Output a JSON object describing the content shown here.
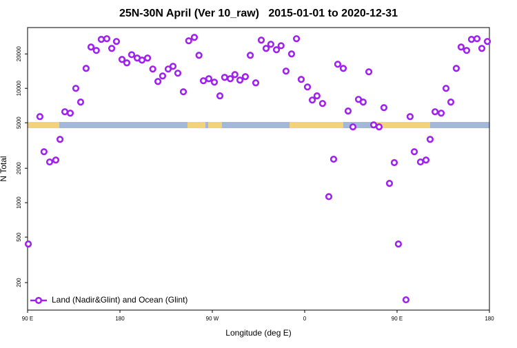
{
  "chart_data": {
    "type": "scatter",
    "title": "25N-30N April (Ver 10_raw)   2015-01-01 to 2020-12-31",
    "x_label": "Longitude (deg E)",
    "y_label": "N Total",
    "log_y": true,
    "legend": "lower left",
    "xlim": [
      90,
      540
    ],
    "xticks": [
      {
        "value": 90,
        "label": "90 E"
      },
      {
        "value": 180,
        "label": "180"
      },
      {
        "value": 270,
        "label": "90 W"
      },
      {
        "value": 360,
        "label": "0"
      },
      {
        "value": 450,
        "label": "90 E"
      },
      {
        "value": 540,
        "label": "180"
      }
    ],
    "ylim": [
      115,
      34000
    ],
    "yticks": [
      200,
      500,
      1000,
      2000,
      5000,
      10000,
      20000
    ],
    "series": [
      {
        "name": "Land (Nadir&Glint) and Ocean (Glint)",
        "color": "#a020f0",
        "x": [
          90.7,
          102,
          106,
          111.5,
          117.5,
          121.6,
          126.3,
          131.6,
          137,
          141.7,
          147,
          151.8,
          157,
          161.8,
          167.2,
          172,
          176.6,
          182,
          186.7,
          191.4,
          196.8,
          201.5,
          206.9,
          212,
          217,
          221.6,
          227,
          231.7,
          236.4,
          241.8,
          247,
          252.5,
          257,
          261.3,
          266.6,
          272,
          277.4,
          282,
          287.5,
          292,
          296.9,
          302.2,
          307,
          312.3,
          317.7,
          322.4,
          327,
          332.5,
          337,
          341.8,
          347.2,
          352,
          356.6,
          362.7,
          367.4,
          372,
          377.4,
          383.5,
          388.2,
          392.2,
          397.6,
          402.3,
          407,
          412.4,
          417,
          422.5,
          427.2,
          432.5,
          437.2,
          442.6,
          447.3,
          451.3,
          458.7,
          462.7,
          466.8,
          472.8,
          478.2,
          482.2,
          487,
          493,
          497.7,
          502.4,
          507.7,
          512.4,
          517.8,
          522.5,
          527.9,
          532.6,
          538
        ],
        "values": [
          435,
          5660,
          2790,
          2270,
          2360,
          3580,
          6240,
          6070,
          10000,
          7580,
          14950,
          22980,
          21450,
          26800,
          27160,
          22350,
          25700,
          17900,
          16700,
          19700,
          18400,
          17650,
          18400,
          14750,
          11480,
          12830,
          14750,
          15590,
          13570,
          9330,
          26050,
          27900,
          19450,
          11650,
          12140,
          11330,
          8590,
          12480,
          12140,
          13190,
          11800,
          12650,
          19450,
          11170,
          26400,
          22350,
          24300,
          21750,
          23600,
          14150,
          20000,
          27160,
          11970,
          10280,
          7900,
          8590,
          7370,
          1130,
          2400,
          16250,
          14950,
          6330,
          4600,
          8010,
          7580,
          13950,
          4790,
          4600,
          6780,
          1475,
          2240,
          435,
          141.5,
          5660,
          2790,
          2270,
          2360,
          3580,
          6240,
          6070,
          10000,
          7580,
          14950,
          22980,
          21450,
          26800,
          27160,
          22350,
          25700
        ]
      }
    ]
  }
}
